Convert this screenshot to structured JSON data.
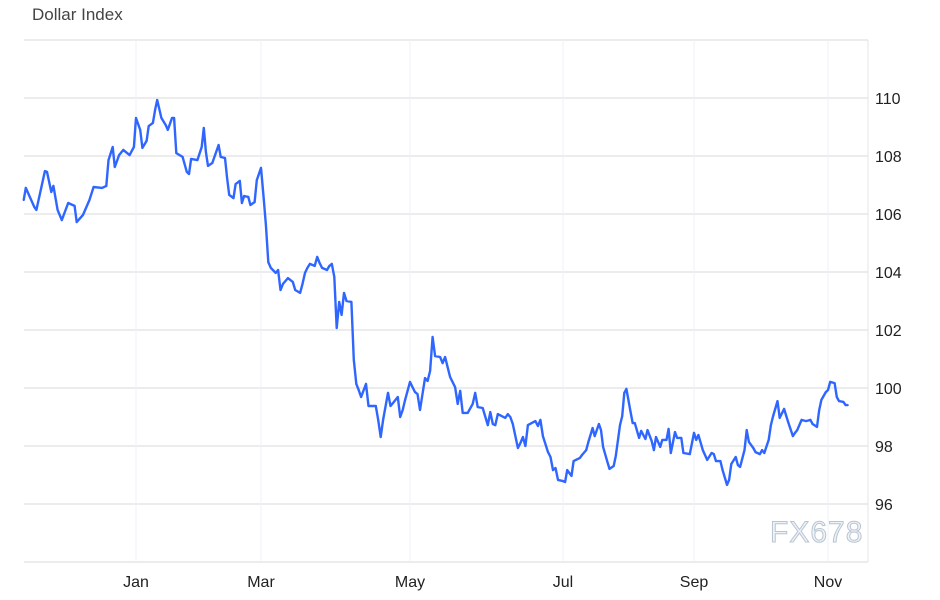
{
  "chart_data": {
    "type": "line",
    "title": "Dollar Index",
    "xlabel": "",
    "ylabel": "",
    "ylim": [
      94,
      112
    ],
    "y_ticks": [
      96,
      98,
      100,
      102,
      104,
      106,
      108,
      110
    ],
    "x_ticks": [
      {
        "label": "Jan",
        "date": "2025-01-01"
      },
      {
        "label": "Mar",
        "date": "2025-03-01"
      },
      {
        "label": "May",
        "date": "2025-05-01"
      },
      {
        "label": "Jul",
        "date": "2025-07-01"
      },
      {
        "label": "Sep",
        "date": "2025-09-01"
      },
      {
        "label": "Nov",
        "date": "2025-11-01"
      }
    ],
    "y_axis_position": "right",
    "grid": true,
    "line_color": "#2f66ff",
    "series": [
      {
        "points": [
          [
            "2024-11-09",
            106.48
          ],
          [
            "2024-11-10",
            106.9
          ],
          [
            "2024-11-14",
            106.24
          ],
          [
            "2024-11-15",
            106.14
          ],
          [
            "2024-11-19",
            107.48
          ],
          [
            "2024-11-20",
            107.45
          ],
          [
            "2024-11-22",
            106.76
          ],
          [
            "2024-11-23",
            106.97
          ],
          [
            "2024-11-25",
            106.14
          ],
          [
            "2024-11-27",
            105.79
          ],
          [
            "2024-11-30",
            106.38
          ],
          [
            "2024-12-03",
            106.28
          ],
          [
            "2024-12-04",
            105.72
          ],
          [
            "2024-12-07",
            105.97
          ],
          [
            "2024-12-10",
            106.48
          ],
          [
            "2024-12-12",
            106.93
          ],
          [
            "2024-12-16",
            106.9
          ],
          [
            "2024-12-18",
            106.97
          ],
          [
            "2024-12-19",
            107.86
          ],
          [
            "2024-12-21",
            108.31
          ],
          [
            "2024-12-22",
            107.62
          ],
          [
            "2024-12-24",
            108.03
          ],
          [
            "2024-12-26",
            108.21
          ],
          [
            "2024-12-29",
            108.03
          ],
          [
            "2024-12-31",
            108.31
          ],
          [
            "2025-01-01",
            109.31
          ],
          [
            "2025-01-03",
            108.9
          ],
          [
            "2025-01-04",
            108.28
          ],
          [
            "2025-01-06",
            108.52
          ],
          [
            "2025-01-07",
            109.03
          ],
          [
            "2025-01-09",
            109.14
          ],
          [
            "2025-01-10",
            109.59
          ],
          [
            "2025-01-11",
            109.93
          ],
          [
            "2025-01-13",
            109.31
          ],
          [
            "2025-01-15",
            109.07
          ],
          [
            "2025-01-16",
            108.9
          ],
          [
            "2025-01-18",
            109.31
          ],
          [
            "2025-01-19",
            109.31
          ],
          [
            "2025-01-20",
            108.1
          ],
          [
            "2025-01-23",
            107.97
          ],
          [
            "2025-01-25",
            107.45
          ],
          [
            "2025-01-26",
            107.38
          ],
          [
            "2025-01-27",
            107.9
          ],
          [
            "2025-01-30",
            107.86
          ],
          [
            "2025-02-01",
            108.31
          ],
          [
            "2025-02-02",
            108.97
          ],
          [
            "2025-02-03",
            108.14
          ],
          [
            "2025-02-04",
            107.66
          ],
          [
            "2025-02-06",
            107.76
          ],
          [
            "2025-02-09",
            108.38
          ],
          [
            "2025-02-10",
            107.97
          ],
          [
            "2025-02-12",
            107.93
          ],
          [
            "2025-02-13",
            107.24
          ],
          [
            "2025-02-14",
            106.66
          ],
          [
            "2025-02-16",
            106.55
          ],
          [
            "2025-02-17",
            107.03
          ],
          [
            "2025-02-19",
            107.14
          ],
          [
            "2025-02-20",
            106.38
          ],
          [
            "2025-02-21",
            106.62
          ],
          [
            "2025-02-23",
            106.59
          ],
          [
            "2025-02-24",
            106.31
          ],
          [
            "2025-02-26",
            106.41
          ],
          [
            "2025-02-27",
            107.17
          ],
          [
            "2025-03-01",
            107.59
          ],
          [
            "2025-03-02",
            106.66
          ],
          [
            "2025-03-03",
            105.62
          ],
          [
            "2025-03-04",
            104.34
          ],
          [
            "2025-03-05",
            104.14
          ],
          [
            "2025-03-07",
            103.97
          ],
          [
            "2025-03-08",
            104.07
          ],
          [
            "2025-03-09",
            103.38
          ],
          [
            "2025-03-10",
            103.59
          ],
          [
            "2025-03-12",
            103.79
          ],
          [
            "2025-03-14",
            103.66
          ],
          [
            "2025-03-15",
            103.38
          ],
          [
            "2025-03-17",
            103.28
          ],
          [
            "2025-03-18",
            103.59
          ],
          [
            "2025-03-19",
            103.97
          ],
          [
            "2025-03-20",
            104.14
          ],
          [
            "2025-03-21",
            104.28
          ],
          [
            "2025-03-23",
            104.21
          ],
          [
            "2025-03-24",
            104.52
          ],
          [
            "2025-03-25",
            104.31
          ],
          [
            "2025-03-26",
            104.14
          ],
          [
            "2025-03-28",
            104.07
          ],
          [
            "2025-03-29",
            104.21
          ],
          [
            "2025-03-30",
            104.28
          ],
          [
            "2025-03-31",
            103.83
          ],
          [
            "2025-04-01",
            102.07
          ],
          [
            "2025-04-02",
            102.97
          ],
          [
            "2025-04-03",
            102.52
          ],
          [
            "2025-04-04",
            103.28
          ],
          [
            "2025-04-05",
            103.0
          ],
          [
            "2025-04-07",
            102.97
          ],
          [
            "2025-04-08",
            100.97
          ],
          [
            "2025-04-09",
            100.14
          ],
          [
            "2025-04-10",
            99.93
          ],
          [
            "2025-04-11",
            99.69
          ],
          [
            "2025-04-13",
            100.14
          ],
          [
            "2025-04-14",
            99.38
          ],
          [
            "2025-04-17",
            99.38
          ],
          [
            "2025-04-18",
            98.9
          ],
          [
            "2025-04-19",
            98.31
          ],
          [
            "2025-04-20",
            98.9
          ],
          [
            "2025-04-22",
            99.83
          ],
          [
            "2025-04-23",
            99.38
          ],
          [
            "2025-04-24",
            99.48
          ],
          [
            "2025-04-26",
            99.69
          ],
          [
            "2025-04-27",
            99.0
          ],
          [
            "2025-04-28",
            99.24
          ],
          [
            "2025-04-29",
            99.59
          ],
          [
            "2025-05-01",
            100.21
          ],
          [
            "2025-05-02",
            100.03
          ],
          [
            "2025-05-03",
            99.86
          ],
          [
            "2025-05-04",
            99.79
          ],
          [
            "2025-05-05",
            99.24
          ],
          [
            "2025-05-07",
            100.34
          ],
          [
            "2025-05-08",
            100.24
          ],
          [
            "2025-05-09",
            100.59
          ],
          [
            "2025-05-10",
            101.76
          ],
          [
            "2025-05-11",
            101.1
          ],
          [
            "2025-05-13",
            101.07
          ],
          [
            "2025-05-14",
            100.86
          ],
          [
            "2025-05-15",
            101.07
          ],
          [
            "2025-05-16",
            100.72
          ],
          [
            "2025-05-17",
            100.38
          ],
          [
            "2025-05-19",
            100.03
          ],
          [
            "2025-05-20",
            99.45
          ],
          [
            "2025-05-21",
            99.9
          ],
          [
            "2025-05-22",
            99.14
          ],
          [
            "2025-05-24",
            99.14
          ],
          [
            "2025-05-26",
            99.45
          ],
          [
            "2025-05-27",
            99.83
          ],
          [
            "2025-05-28",
            99.34
          ],
          [
            "2025-05-30",
            99.31
          ],
          [
            "2025-06-01",
            98.72
          ],
          [
            "2025-06-02",
            99.17
          ],
          [
            "2025-06-03",
            98.76
          ],
          [
            "2025-06-04",
            98.72
          ],
          [
            "2025-06-05",
            99.1
          ],
          [
            "2025-06-08",
            98.97
          ],
          [
            "2025-06-09",
            99.1
          ],
          [
            "2025-06-10",
            99.0
          ],
          [
            "2025-06-11",
            98.76
          ],
          [
            "2025-06-13",
            97.93
          ],
          [
            "2025-06-14",
            98.1
          ],
          [
            "2025-06-15",
            98.31
          ],
          [
            "2025-06-16",
            98.0
          ],
          [
            "2025-06-17",
            98.72
          ],
          [
            "2025-06-20",
            98.86
          ],
          [
            "2025-06-21",
            98.69
          ],
          [
            "2025-06-22",
            98.9
          ],
          [
            "2025-06-23",
            98.34
          ],
          [
            "2025-06-25",
            97.79
          ],
          [
            "2025-06-26",
            97.62
          ],
          [
            "2025-06-27",
            97.17
          ],
          [
            "2025-06-28",
            97.24
          ],
          [
            "2025-06-29",
            96.83
          ],
          [
            "2025-07-01",
            96.79
          ],
          [
            "2025-07-02",
            96.76
          ],
          [
            "2025-07-03",
            97.17
          ],
          [
            "2025-07-05",
            96.97
          ],
          [
            "2025-07-06",
            97.48
          ],
          [
            "2025-07-09",
            97.59
          ],
          [
            "2025-07-10",
            97.69
          ],
          [
            "2025-07-12",
            97.86
          ],
          [
            "2025-07-13",
            98.14
          ],
          [
            "2025-07-15",
            98.62
          ],
          [
            "2025-07-16",
            98.34
          ],
          [
            "2025-07-18",
            98.76
          ],
          [
            "2025-07-19",
            98.55
          ],
          [
            "2025-07-20",
            97.97
          ],
          [
            "2025-07-22",
            97.45
          ],
          [
            "2025-07-23",
            97.21
          ],
          [
            "2025-07-25",
            97.31
          ],
          [
            "2025-07-26",
            97.66
          ],
          [
            "2025-07-28",
            98.72
          ],
          [
            "2025-07-29",
            99.03
          ],
          [
            "2025-07-30",
            99.83
          ],
          [
            "2025-07-31",
            99.97
          ],
          [
            "2025-08-02",
            99.17
          ],
          [
            "2025-08-03",
            98.79
          ],
          [
            "2025-08-04",
            98.79
          ],
          [
            "2025-08-06",
            98.28
          ],
          [
            "2025-08-07",
            98.52
          ],
          [
            "2025-08-09",
            98.24
          ],
          [
            "2025-08-10",
            98.55
          ],
          [
            "2025-08-12",
            98.17
          ],
          [
            "2025-08-13",
            97.86
          ],
          [
            "2025-08-14",
            98.31
          ],
          [
            "2025-08-16",
            97.97
          ],
          [
            "2025-08-17",
            98.21
          ],
          [
            "2025-08-19",
            98.21
          ],
          [
            "2025-08-20",
            98.59
          ],
          [
            "2025-08-21",
            97.76
          ],
          [
            "2025-08-23",
            98.48
          ],
          [
            "2025-08-24",
            98.28
          ],
          [
            "2025-08-26",
            98.28
          ],
          [
            "2025-08-27",
            97.76
          ],
          [
            "2025-08-30",
            97.72
          ],
          [
            "2025-09-01",
            98.45
          ],
          [
            "2025-09-02",
            98.21
          ],
          [
            "2025-09-03",
            98.38
          ],
          [
            "2025-09-05",
            97.86
          ],
          [
            "2025-09-06",
            97.69
          ],
          [
            "2025-09-07",
            97.52
          ],
          [
            "2025-09-09",
            97.76
          ],
          [
            "2025-09-10",
            97.72
          ],
          [
            "2025-09-11",
            97.48
          ],
          [
            "2025-09-13",
            97.48
          ],
          [
            "2025-09-14",
            97.17
          ],
          [
            "2025-09-16",
            96.66
          ],
          [
            "2025-09-17",
            96.83
          ],
          [
            "2025-09-18",
            97.38
          ],
          [
            "2025-09-20",
            97.62
          ],
          [
            "2025-09-21",
            97.34
          ],
          [
            "2025-09-22",
            97.28
          ],
          [
            "2025-09-24",
            97.86
          ],
          [
            "2025-09-25",
            98.55
          ],
          [
            "2025-09-26",
            98.14
          ],
          [
            "2025-09-28",
            97.93
          ],
          [
            "2025-09-29",
            97.79
          ],
          [
            "2025-10-01",
            97.72
          ],
          [
            "2025-10-02",
            97.86
          ],
          [
            "2025-10-03",
            97.76
          ],
          [
            "2025-10-05",
            98.21
          ],
          [
            "2025-10-06",
            98.72
          ],
          [
            "2025-10-07",
            99.03
          ],
          [
            "2025-10-09",
            99.55
          ],
          [
            "2025-10-10",
            98.97
          ],
          [
            "2025-10-12",
            99.28
          ],
          [
            "2025-10-13",
            99.03
          ],
          [
            "2025-10-14",
            98.79
          ],
          [
            "2025-10-16",
            98.34
          ],
          [
            "2025-10-17",
            98.45
          ],
          [
            "2025-10-18",
            98.55
          ],
          [
            "2025-10-20",
            98.9
          ],
          [
            "2025-10-22",
            98.86
          ],
          [
            "2025-10-24",
            98.9
          ],
          [
            "2025-10-25",
            98.76
          ],
          [
            "2025-10-27",
            98.66
          ],
          [
            "2025-10-28",
            99.24
          ],
          [
            "2025-10-29",
            99.59
          ],
          [
            "2025-10-31",
            99.86
          ],
          [
            "2025-11-01",
            99.93
          ],
          [
            "2025-11-02",
            100.21
          ],
          [
            "2025-11-04",
            100.17
          ],
          [
            "2025-11-05",
            99.69
          ],
          [
            "2025-11-06",
            99.55
          ],
          [
            "2025-11-08",
            99.52
          ],
          [
            "2025-11-09",
            99.41
          ],
          [
            "2025-11-10",
            99.41
          ]
        ]
      }
    ]
  },
  "watermark": "FX678"
}
